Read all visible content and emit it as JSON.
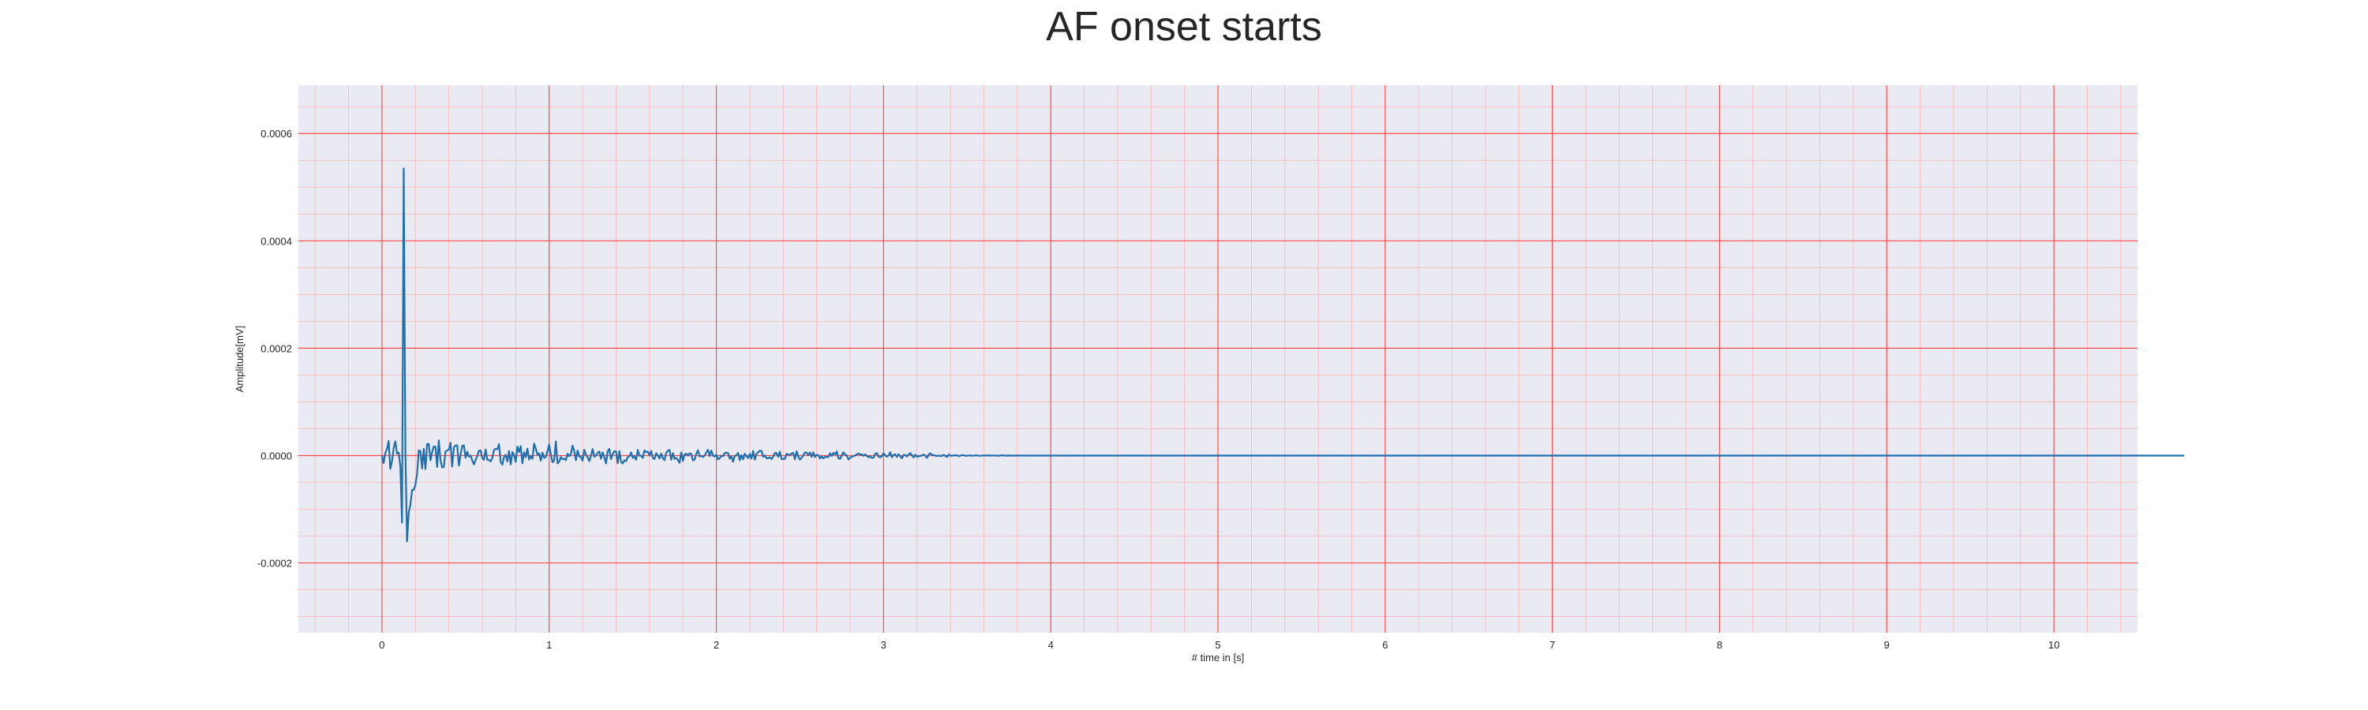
{
  "chart_data": {
    "type": "line",
    "title": "AF onset starts",
    "xlabel": "# time in [s]",
    "ylabel": "Amplitude[mV]",
    "xlim": [
      -0.5,
      10.5
    ],
    "ylim": [
      -0.00033,
      0.00069
    ],
    "x_ticks": [
      0,
      1,
      2,
      3,
      4,
      5,
      6,
      7,
      8,
      9,
      10
    ],
    "x_tick_labels": [
      "0",
      "1",
      "2",
      "3",
      "4",
      "5",
      "6",
      "7",
      "8",
      "9",
      "10"
    ],
    "y_ticks": [
      -0.0002,
      0.0,
      0.0002,
      0.0004,
      0.0006
    ],
    "y_tick_labels": [
      "-0.0002",
      "0.0000",
      "0.0002",
      "0.0004",
      "0.0006"
    ],
    "grid": true,
    "minor_grid": true,
    "legend": "none",
    "colors": {
      "background": "#eaeaf2",
      "major_grid": "#ff4d4d",
      "minor_grid": "#ffb3b3",
      "line": "#1f6fae"
    },
    "series": [
      {
        "sampling_rate_hz": 100,
        "x_start": 0,
        "values": [
          0.0,
          -1.4e-05,
          5e-06,
          1.2e-05,
          2.73e-05,
          -2.48e-05,
          -1.08e-05,
          1.39e-05,
          2.65e-05,
          3.7e-06,
          5.3e-06,
          -2e-05,
          -0.000125,
          0.000535,
          1e-05,
          -0.00016,
          -0.000106,
          -9.2e-05,
          -6.4e-05,
          -6.4e-05,
          -5.46e-05,
          -3.44e-05,
          9.6e-06,
          8.3e-06,
          -2.41e-05,
          1.26e-05,
          -2.52e-05,
          2.14e-05,
          2.16e-05,
          -8.9e-06,
          6.4e-06,
          1.71e-05,
          1.66e-05,
          -2.12e-05,
          2.83e-05,
          -8.8e-06,
          -2.23e-05,
          -2.12e-05,
          7.5e-06,
          9.4e-06,
          1.12e-05,
          2.38e-05,
          -2.05e-05,
          1.51e-05,
          1.89e-05,
          1.89e-05,
          -1.89e-05,
          1.5e-06,
          1.81e-05,
          1.88e-05,
          -4.1e-06,
          7.2e-06,
          -2.1e-06,
          -2e-07,
          -9.1e-06,
          -1.66e-05,
          -8.3e-06,
          -1e-06,
          9.3e-06,
          9.6e-06,
          -4.8e-06,
          -7.8e-06,
          1.14e-05,
          -7.9e-06,
          -8.4e-06,
          -1.09e-05,
          -4.6e-06,
          1.05e-05,
          1.25e-05,
          1.18e-05,
          2.15e-05,
          -1.19e-05,
          -1.71e-05,
          -2.4e-06,
          1.3e-06,
          -1.09e-05,
          8.5e-06,
          -1.65e-05,
          6.4e-06,
          1.4e-06,
          -1.19e-05,
          1.68e-05,
          6.3e-06,
          1.76e-05,
          -1.45e-05,
          6e-06,
          -3.1e-06,
          1.29e-05,
          -7.4e-06,
          -1e-06,
          -5.9e-06,
          2.25e-05,
          1.33e-05,
          1.3e-06,
          4.2e-06,
          -9.4e-06,
          5.5e-06,
          -4.4e-06,
          -2.3e-06,
          8.4e-06,
          2.03e-05,
          2.2e-06,
          -1.24e-05,
          -9.2e-06,
          2.63e-05,
          -1.45e-05,
          -1.14e-05,
          -2.8e-06,
          -6.8e-06,
          -5.7e-06,
          -8.7e-06,
          3.3e-06,
          -1.4e-06,
          3e-06,
          1.85e-05,
          8.6e-06,
          -8.7e-06,
          9.2e-06,
          -1.5e-06,
          -2.7e-06,
          -9.6e-06,
          1.09e-05,
          1.4e-06,
          -3e-06,
          -1.03e-05,
          -5e-07,
          1.21e-05,
          -2.1e-06,
          -2e-07,
          5.2e-06,
          7.6e-06,
          -6.1e-06,
          5.8e-06,
          -3e-06,
          -1.48e-05,
          7.9e-06,
          1.24e-05,
          -6.8e-06,
          2.7e-06,
          8.1e-06,
          7.7e-06,
          -1.44e-05,
          8.2e-06,
          -1.19e-05,
          -1.49e-05,
          -8.7e-06,
          -1.06e-05,
          -2.9e-06,
          -1.3e-06,
          5.9e-06,
          -4.4e-06,
          -1.2e-06,
          -8e-06,
          1.06e-05,
          -2e-07,
          -1e-07,
          -4.5e-06,
          9.5e-06,
          6.6e-06,
          7.2e-06,
          -1e-07,
          8.7e-06,
          -4.6e-06,
          -6.5e-06,
          4.5e-06,
          2e-07,
          -5.4e-06,
          3.6e-06,
          -4.9e-06,
          -8.5e-06,
          4.6e-06,
          9.2e-06,
          1.06e-05,
          -7.7e-06,
          4.5e-06,
          -6.1e-06,
          -4.4e-06,
          -8.5e-06,
          -1.36e-05,
          6.1e-06,
          -1.01e-05,
          2e-06,
          3.5e-06,
          1e-07,
          4.2e-06,
          3e-06,
          -9.1e-06,
          -7.5e-06,
          3.2e-06,
          9.9e-06,
          -1.7e-06,
          -5e-07,
          -2.8e-06,
          2e-07,
          6e-06,
          1.07e-05,
          -7e-07,
          9.4e-06,
          -2e-07,
          -1.8e-06,
          1.6e-06,
          -7.1e-06,
          -5e-06,
          -4e-07,
          -1.2e-06,
          4.7e-06,
          5.4e-06,
          4.5e-06,
          -5.7e-06,
          -1.5e-06,
          -1.16e-05,
          -7e-07,
          3e-07,
          5e-06,
          -8.7e-06,
          7e-07,
          -7e-06,
          3.5e-06,
          -1.5e-06,
          -4.6e-06,
          3.1e-06,
          -5.8e-06,
          8.7e-06,
          -7.7e-06,
          3.2e-06,
          6.2e-06,
          9e-06,
          8.7e-06,
          -2e-06,
          2e-07,
          -5.1e-06,
          -5e-06,
          -3.4e-06,
          -6.4e-06,
          -1.9e-06,
          4.5e-06,
          4.7e-06,
          -2.2e-06,
          7.2e-06,
          -6.6e-06,
          -6.1e-06,
          -6.3e-06,
          3.3e-06,
          1.5e-06,
          1.4e-06,
          3.9e-06,
          4.8e-06,
          -6.9e-06,
          7.9e-06,
          -2e-06,
          -7.6e-06,
          -4.3e-06,
          4e-07,
          5.8e-06,
          5.3e-06,
          1.2e-06,
          5.7e-06,
          -2.5e-06,
          6e-06,
          -2.6e-06,
          1.5e-06,
          6e-07,
          -5.4e-06,
          -1.5e-06,
          -5.3e-06,
          -2.5e-06,
          -2.4e-06,
          -3e-06,
          4.4e-06,
          -7e-07,
          4.8e-06,
          2.5e-06,
          7.6e-06,
          -4.8e-06,
          -6.3e-06,
          6e-07,
          6.2e-06,
          1.6e-06,
          5e-07,
          -7.4e-06,
          -4.3e-06,
          -2.2e-06,
          -1.1e-06,
          3e-07,
          2.3e-06,
          4e-06,
          1.7e-06,
          2.2e-06,
          -5e-07,
          2.2e-06,
          -7e-07,
          -3.2e-06,
          -1.4e-06,
          -4.4e-06,
          -3.9e-06,
          3.3e-06,
          4.5e-06,
          -2e-06,
          -3.4e-06,
          -8e-07,
          4.1e-06,
          3e-07,
          -2.1e-06,
          1e-07,
          6.2e-06,
          -3.4e-06,
          1.3e-06,
          2.2e-06,
          -2.5e-06,
          2.5e-06,
          -1.4e-06,
          -5e-06,
          1.3e-06,
          9e-07,
          -1.8e-06,
          2.1e-06,
          4.6e-06,
          8e-07,
          -3.5e-06,
          1.6e-06,
          -2.4e-06,
          -1.3e-06,
          -7e-07,
          4e-07,
          1.7e-06,
          -5e-07,
          -4.2e-06,
          1.9e-06,
          4.2e-06,
          9e-07,
          9e-07,
          -4e-07,
          -9e-07,
          1e-07,
          -9e-07,
          -5e-07,
          1.3e-06,
          -8e-07,
          -2.6e-06,
          2e-06,
          -7e-07,
          2e-07,
          -2e-07,
          7e-07,
          2e-07,
          -1.4e-06,
          1e-07,
          6e-07,
          7e-07,
          -5e-07,
          -5e-07,
          4e-07,
          1e-07,
          -3e-07,
          -1e-07,
          4e-07,
          3e-07,
          -3e-07,
          -5e-07,
          1e-07,
          1e-07,
          1e-07,
          1e-07,
          3e-07,
          -2e-07,
          2e-07,
          -1e-07,
          2e-07,
          -1e-07,
          -4e-07,
          1e-07,
          5e-07,
          1e-07,
          0.0,
          -2e-07,
          1e-07,
          0.0,
          -1e-07,
          -1e-07,
          0.0,
          1e-07,
          1e-07,
          0.0,
          0.0,
          0.0,
          0.0,
          -1e-07,
          0.0,
          0.0,
          0.0,
          0.0,
          0.0,
          0.0,
          0.0,
          0.0,
          0.0,
          0.0,
          0.0,
          0.0,
          0.0,
          0.0,
          0.0,
          0.0,
          0.0,
          0.0,
          0.0,
          0.0,
          0.0,
          0.0,
          0.0,
          0.0,
          0.0,
          0.0,
          0.0,
          0.0,
          0.0,
          0.0,
          0.0,
          0.0,
          0.0,
          0.0,
          0.0,
          0.0,
          0.0,
          0.0,
          0.0,
          0.0,
          0.0,
          0.0,
          0.0,
          0.0,
          0.0,
          0.0,
          0.0,
          0.0,
          0.0,
          0.0,
          0.0,
          0.0,
          0.0,
          0.0,
          0.0,
          0.0,
          0.0,
          0.0,
          0.0,
          0.0,
          0.0,
          0.0,
          0.0,
          0.0,
          0.0,
          0.0,
          0.0,
          0.0,
          0.0,
          0.0,
          0.0,
          0.0,
          0.0,
          0.0,
          0.0,
          0.0,
          0.0,
          0.0,
          0.0,
          0.0,
          0.0,
          0.0,
          0.0,
          0.0,
          0.0,
          0.0,
          0.0,
          0.0,
          0.0,
          0.0,
          0.0,
          0.0,
          0.0,
          0.0,
          0.0,
          0.0,
          0.0,
          0.0,
          0.0,
          0.0,
          0.0,
          0.0,
          0.0,
          0.0,
          0.0,
          0.0,
          0.0,
          0.0,
          0.0,
          0.0,
          0.0,
          0.0,
          0.0,
          0.0,
          0.0,
          0.0,
          0.0,
          0.0,
          0.0,
          0.0,
          0.0,
          0.0,
          0.0,
          0.0,
          0.0,
          0.0,
          0.0,
          0.0,
          0.0,
          0.0,
          0.0,
          0.0,
          0.0,
          0.0,
          0.0,
          0.0,
          0.0,
          0.0,
          0.0,
          0.0,
          0.0,
          0.0,
          0.0,
          0.0,
          0.0,
          0.0,
          0.0,
          0.0,
          0.0,
          0.0,
          0.0,
          0.0,
          0.0,
          0.0,
          0.0,
          0.0,
          0.0,
          0.0,
          0.0,
          0.0,
          0.0,
          0.0,
          0.0,
          0.0,
          0.0,
          0.0,
          0.0,
          0.0,
          0.0,
          0.0,
          0.0,
          0.0,
          0.0,
          0.0,
          0.0,
          0.0,
          0.0,
          0.0,
          0.0,
          0.0,
          0.0,
          0.0,
          0.0,
          0.0,
          0.0,
          0.0,
          0.0,
          0.0,
          0.0,
          0.0,
          0.0,
          0.0,
          0.0,
          0.0,
          0.0,
          0.0,
          0.0,
          0.0,
          0.0,
          0.0,
          0.0,
          0.0,
          0.0,
          0.0,
          0.0,
          0.0,
          0.0,
          0.0,
          0.0,
          0.0,
          0.0,
          0.0,
          0.0,
          0.0,
          0.0,
          0.0,
          0.0,
          0.0,
          0.0,
          0.0,
          0.0,
          0.0,
          0.0,
          0.0,
          0.0,
          0.0,
          0.0,
          0.0,
          0.0,
          0.0,
          0.0,
          0.0,
          0.0,
          0.0,
          0.0,
          0.0,
          0.0,
          0.0,
          0.0,
          0.0,
          0.0,
          0.0,
          0.0,
          0.0,
          0.0,
          0.0,
          0.0,
          0.0,
          0.0,
          0.0,
          0.0,
          0.0,
          0.0,
          0.0,
          0.0,
          0.0,
          0.0,
          0.0,
          0.0,
          0.0,
          0.0,
          0.0,
          0.0,
          0.0,
          0.0,
          0.0,
          0.0,
          0.0,
          0.0,
          0.0,
          0.0,
          0.0,
          0.0,
          0.0,
          0.0,
          0.0,
          0.0,
          0.0,
          0.0,
          0.0,
          0.0,
          0.0,
          0.0,
          0.0,
          0.0,
          0.0,
          0.0,
          0.0,
          0.0,
          0.0,
          0.0,
          0.0,
          0.0,
          0.0,
          0.0,
          0.0,
          0.0,
          0.0,
          0.0,
          0.0,
          0.0,
          0.0,
          0.0,
          0.0,
          0.0,
          0.0,
          0.0,
          0.0,
          0.0,
          0.0,
          0.0,
          0.0,
          0.0,
          0.0,
          0.0,
          0.0,
          0.0,
          0.0,
          0.0,
          0.0,
          0.0,
          0.0,
          0.0,
          0.0,
          0.0,
          0.0,
          0.0,
          0.0,
          0.0,
          0.0,
          0.0,
          0.0,
          0.0,
          0.0,
          0.0,
          0.0,
          0.0,
          0.0,
          0.0,
          0.0,
          0.0,
          0.0,
          0.0,
          0.0,
          0.0,
          0.0,
          0.0,
          0.0,
          0.0,
          0.0,
          0.0,
          0.0,
          0.0,
          0.0,
          0.0,
          0.0,
          0.0,
          0.0,
          0.0,
          0.0,
          0.0,
          0.0,
          0.0,
          0.0,
          0.0,
          0.0,
          0.0,
          0.0,
          0.0,
          0.0,
          0.0,
          0.0,
          0.0,
          0.0,
          0.0,
          0.0,
          0.0,
          0.0,
          0.0,
          0.0,
          0.0,
          0.0,
          0.0,
          0.0,
          0.0,
          0.0,
          0.0,
          0.0,
          0.0,
          0.0,
          0.0,
          0.0,
          0.0,
          0.0,
          0.0,
          0.0,
          0.0,
          0.0,
          0.0,
          0.0,
          0.0,
          0.0,
          0.0,
          0.0,
          0.0,
          0.0,
          0.0,
          0.0,
          0.0,
          0.0,
          0.0,
          0.0,
          0.0,
          0.0,
          0.0,
          0.0,
          0.0,
          0.0,
          0.0,
          0.0,
          0.0,
          0.0,
          0.0,
          0.0,
          0.0,
          0.0,
          0.0,
          0.0,
          0.0,
          0.0,
          0.0,
          0.0,
          0.0,
          0.0,
          0.0,
          0.0,
          0.0,
          0.0,
          0.0,
          0.0,
          0.0,
          0.0,
          0.0,
          0.0,
          0.0,
          0.0,
          0.0,
          0.0,
          0.0,
          0.0,
          0.0,
          0.0,
          0.0,
          0.0,
          0.0,
          0.0,
          0.0,
          0.0,
          0.0,
          0.0,
          0.0,
          0.0,
          0.0,
          0.0,
          0.0,
          0.0,
          0.0,
          0.0,
          0.0,
          0.0,
          0.0,
          0.0,
          0.0,
          0.0,
          0.0,
          0.0,
          0.0,
          0.0,
          0.0,
          0.0,
          0.0,
          0.0,
          0.0,
          0.0,
          0.0,
          0.0,
          0.0,
          0.0,
          0.0,
          0.0,
          0.0,
          0.0,
          0.0,
          0.0,
          0.0,
          0.0,
          0.0,
          0.0,
          0.0,
          0.0,
          0.0,
          0.0,
          0.0,
          0.0,
          0.0,
          0.0,
          0.0,
          0.0,
          0.0,
          0.0,
          0.0,
          0.0,
          0.0,
          0.0,
          0.0,
          0.0,
          0.0,
          0.0,
          0.0,
          0.0,
          0.0,
          0.0,
          0.0,
          0.0,
          0.0,
          0.0,
          0.0,
          0.0,
          0.0,
          0.0,
          0.0,
          0.0,
          0.0,
          0.0,
          0.0,
          0.0,
          0.0,
          0.0,
          0.0,
          0.0,
          0.0,
          0.0,
          0.0,
          0.0,
          0.0,
          0.0,
          0.0,
          0.0,
          0.0,
          0.0,
          0.0,
          0.0,
          0.0,
          0.0,
          0.0,
          0.0,
          0.0,
          0.0,
          0.0,
          0.0,
          0.0,
          0.0,
          0.0,
          0.0,
          0.0,
          0.0,
          0.0,
          0.0,
          0.0,
          0.0,
          0.0,
          0.0,
          0.0,
          0.0,
          0.0,
          0.0,
          0.0,
          0.0,
          0.0,
          0.0,
          0.0,
          0.0,
          0.0,
          0.0,
          0.0,
          0.0,
          0.0,
          0.0,
          0.0,
          0.0,
          0.0,
          0.0,
          0.0,
          0.0,
          0.0,
          0.0,
          0.0,
          0.0,
          0.0,
          0.0,
          0.0,
          0.0,
          0.0,
          0.0,
          0.0,
          0.0,
          0.0,
          0.0,
          0.0,
          0.0,
          0.0,
          0.0,
          0.0,
          0.0,
          0.0,
          0.0,
          0.0,
          0.0,
          0.0,
          0.0,
          0.0,
          0.0,
          0.0,
          0.0,
          0.0,
          0.0,
          0.0,
          0.0,
          0.0,
          0.0,
          0.0,
          0.0,
          0.0,
          0.0,
          0.0,
          0.0,
          0.0,
          0.0,
          0.0,
          0.0,
          0.0,
          0.0,
          0.0,
          0.0,
          0.0,
          0.0,
          0.0,
          0.0,
          0.0,
          0.0,
          0.0,
          0.0,
          0.0,
          0.0,
          0.0,
          0.0,
          0.0,
          0.0,
          0.0,
          0.0,
          0.0,
          0.0,
          0.0,
          0.0,
          0.0,
          0.0,
          0.0,
          0.0,
          0.0,
          0.0,
          0.0,
          0.0,
          0.0,
          0.0,
          0.0,
          0.0,
          0.0,
          0.0,
          0.0,
          0.0,
          0.0,
          0.0,
          0.0,
          0.0,
          0.0,
          0.0,
          0.0,
          0.0,
          0.0,
          0.0,
          0.0,
          0.0
        ]
      }
    ]
  }
}
